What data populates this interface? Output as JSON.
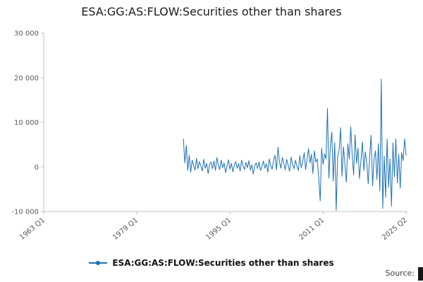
{
  "title": "ESA:GG:AS:FLOW:Securities other than shares",
  "legend": {
    "label": "ESA:GG:AS:FLOW:Securities other than shares"
  },
  "source": {
    "label": "Source:"
  },
  "colors": {
    "line": "#1d70b8",
    "axis": "#c2c2c2",
    "tick_text": "#595959"
  },
  "chart_data": {
    "type": "line",
    "title": "ESA:GG:AS:FLOW:Securities other than shares",
    "xlabel": "",
    "ylabel": "",
    "grid": false,
    "legend_position": "bottom",
    "xlim": [
      1963.0,
      2025.5
    ],
    "ylim": [
      -10000,
      30000
    ],
    "x_ticks": [
      {
        "label": "1963 Q1",
        "value": 1963.0
      },
      {
        "label": "1979 Q1",
        "value": 1979.0
      },
      {
        "label": "1995 Q1",
        "value": 1995.0
      },
      {
        "label": "2011 Q1",
        "value": 2011.0
      },
      {
        "label": "2025 Q2",
        "value": 2025.25
      }
    ],
    "y_ticks": [
      {
        "label": "-10 000",
        "value": -10000
      },
      {
        "label": "0",
        "value": 0
      },
      {
        "label": "10 000",
        "value": 10000
      },
      {
        "label": "20 000",
        "value": 20000
      },
      {
        "label": "30 000",
        "value": 30000
      }
    ],
    "series": [
      {
        "name": "ESA:GG:AS:FLOW:Securities other than shares",
        "start": 1987.0,
        "step": 0.25,
        "values": [
          6300,
          900,
          4800,
          -800,
          2600,
          -1200,
          1500,
          300,
          -700,
          1900,
          -400,
          1200,
          200,
          -900,
          1700,
          -300,
          800,
          -1500,
          600,
          1100,
          -400,
          1300,
          -800,
          2100,
          400,
          -600,
          1500,
          -200,
          900,
          -1300,
          300,
          1600,
          -500,
          800,
          -1100,
          400,
          1200,
          -300,
          700,
          -900,
          1500,
          200,
          -600,
          1000,
          -200,
          1400,
          -700,
          500,
          -1600,
          300,
          900,
          -400,
          1100,
          -800,
          200,
          1300,
          -300,
          700,
          -1200,
          1800,
          200,
          -500,
          1500,
          2600,
          -700,
          4400,
          1200,
          -300,
          2100,
          800,
          -600,
          1700,
          300,
          -1000,
          2200,
          600,
          -400,
          1500,
          200,
          -800,
          2500,
          -200,
          1200,
          3200,
          -600,
          1800,
          4100,
          900,
          2800,
          -1500,
          3600,
          1100,
          1800,
          -2400,
          -7600,
          4200,
          600,
          2900,
          1800,
          13100,
          -2500,
          4600,
          7800,
          -3200,
          5400,
          -9700,
          2200,
          3800,
          8800,
          -2100,
          4500,
          600,
          -3400,
          5200,
          1800,
          9000,
          2600,
          -1800,
          7200,
          800,
          4200,
          -2600,
          1400,
          5600,
          -800,
          3400,
          1000,
          -3800,
          2200,
          7100,
          -4200,
          1600,
          3600,
          -2800,
          5200,
          -5400,
          19700,
          -9300,
          2400,
          -6800,
          6200,
          -4600,
          1800,
          -8800,
          5400,
          -2200,
          6300,
          -3600,
          2800,
          -4800,
          3200,
          1400,
          6300,
          2600
        ]
      }
    ]
  }
}
